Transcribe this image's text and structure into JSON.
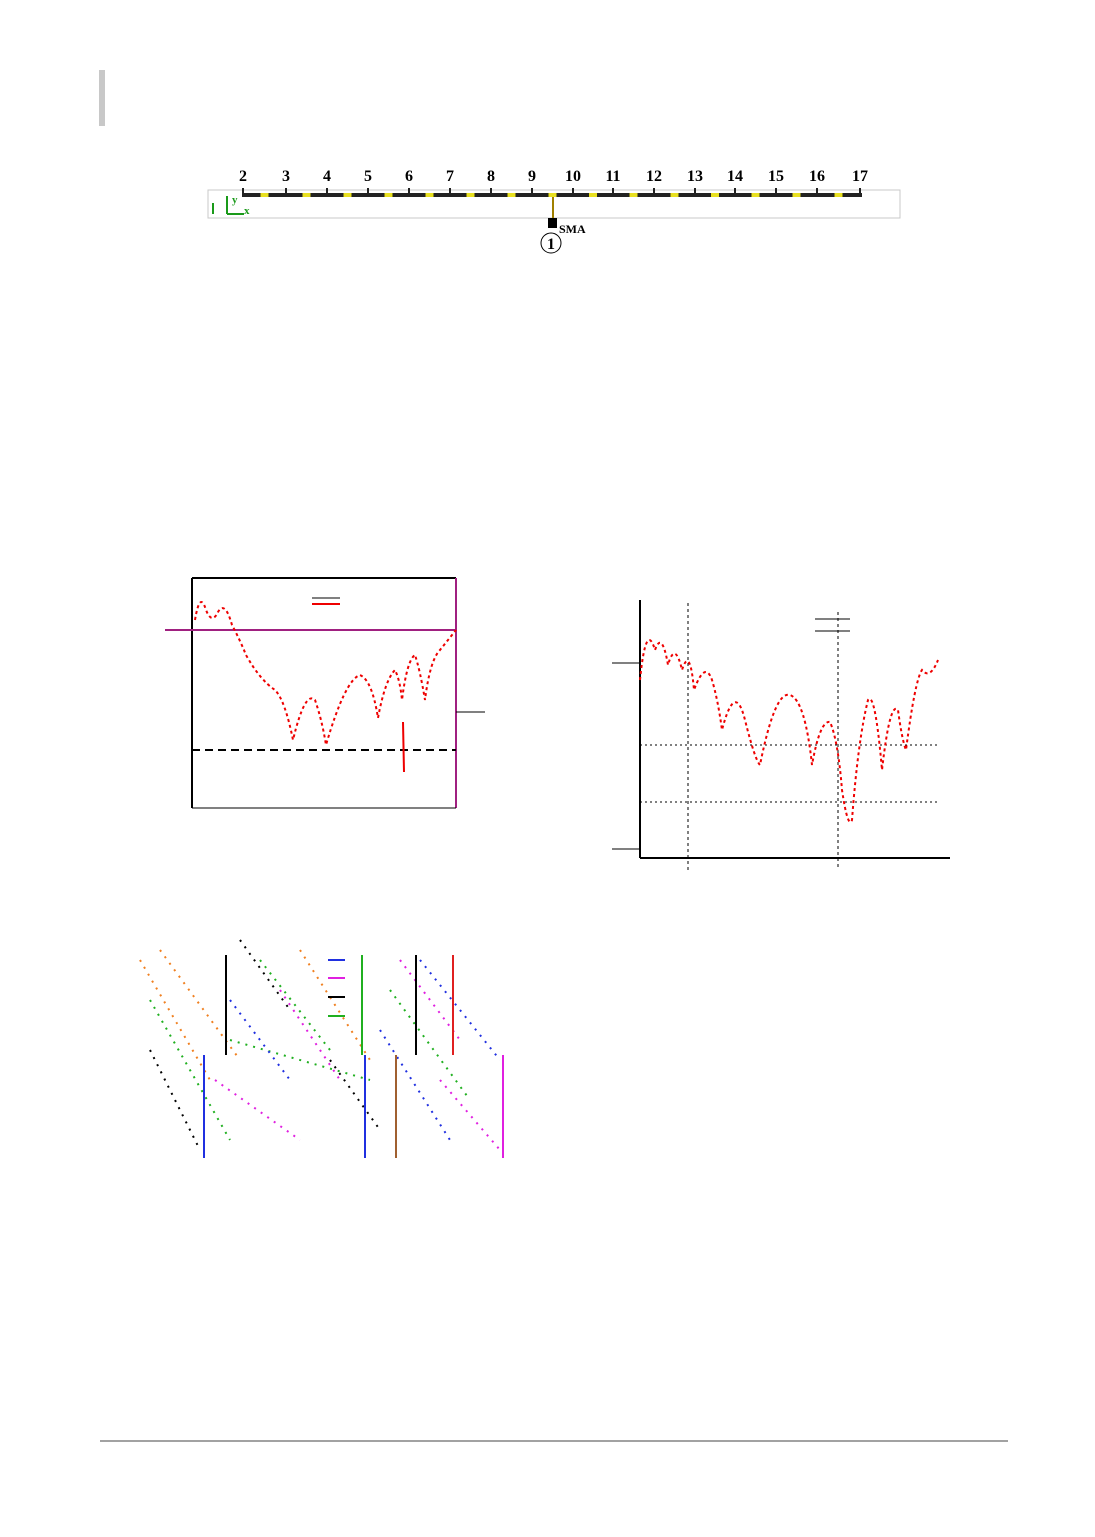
{
  "diagram": {
    "port_labels": [
      "2",
      "3",
      "4",
      "5",
      "6",
      "7",
      "8",
      "9",
      "10",
      "11",
      "12",
      "13",
      "14",
      "15",
      "16",
      "17"
    ],
    "port_name": "SMA",
    "port_number": "1",
    "axis_y": "y",
    "axis_x": "x"
  }
}
